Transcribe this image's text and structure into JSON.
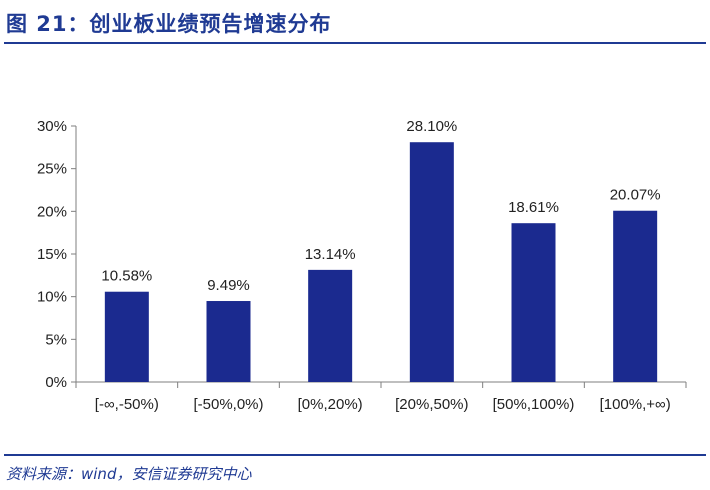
{
  "figure": {
    "title": "图 21：创业板业绩预告增速分布",
    "source": "资料来源：wind，安信证券研究中心"
  },
  "colors": {
    "bar": "#1b2a8f",
    "title": "#1f3a93",
    "axis": "#7f7f7f",
    "text": "#222222"
  },
  "chart_data": {
    "type": "bar",
    "title": "",
    "xlabel": "",
    "ylabel": "",
    "categories": [
      "[-∞,-50%)",
      "[-50%,0%)",
      "[0%,20%)",
      "[20%,50%)",
      "[50%,100%)",
      "[100%,+∞)"
    ],
    "values": [
      10.58,
      9.49,
      13.14,
      28.1,
      18.61,
      20.07
    ],
    "data_labels": [
      "10.58%",
      "9.49%",
      "13.14%",
      "28.10%",
      "18.61%",
      "20.07%"
    ],
    "y_ticks": [
      0,
      5,
      10,
      15,
      20,
      25,
      30
    ],
    "y_tick_labels": [
      "0%",
      "5%",
      "10%",
      "15%",
      "20%",
      "25%",
      "30%"
    ],
    "ylim": [
      0,
      30
    ],
    "grid": false,
    "legend": "none"
  }
}
